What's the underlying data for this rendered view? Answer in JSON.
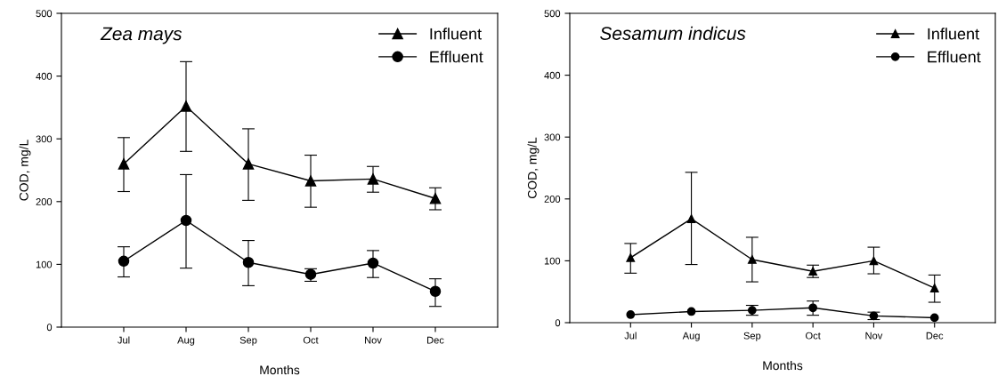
{
  "chart_data": [
    {
      "type": "line",
      "title": "Zea mays",
      "xlabel": "Months",
      "ylabel": "COD, mg/L",
      "categories": [
        "Jul",
        "Aug",
        "Sep",
        "Oct",
        "Nov",
        "Dec"
      ],
      "ylim": [
        0,
        500
      ],
      "yticks": [
        0,
        100,
        200,
        300,
        400,
        500
      ],
      "legend": "top right",
      "grid": false,
      "line_style": "solid",
      "series": [
        {
          "name": "Influent",
          "color": "#000000",
          "marker": "triangle",
          "values": [
            260,
            352,
            260,
            233,
            236,
            205
          ],
          "errors": [
            [
              216,
              302
            ],
            [
              280,
              423
            ],
            [
              202,
              316
            ],
            [
              191,
              274
            ],
            [
              215,
              256
            ],
            [
              187,
              222
            ]
          ]
        },
        {
          "name": "Effluent",
          "color": "#000000",
          "marker": "circle",
          "values": [
            105,
            170,
            103,
            84,
            102,
            57
          ],
          "errors": [
            [
              80,
              128
            ],
            [
              94,
              243
            ],
            [
              66,
              138
            ],
            [
              73,
              93
            ],
            [
              79,
              122
            ],
            [
              33,
              77
            ]
          ]
        }
      ]
    },
    {
      "type": "line",
      "title": "Sesamum indicus",
      "xlabel": "Months",
      "ylabel": "COD, mg/L",
      "categories": [
        "Jul",
        "Aug",
        "Sep",
        "Oct",
        "Nov",
        "Dec"
      ],
      "ylim": [
        0,
        500
      ],
      "yticks": [
        0,
        100,
        200,
        300,
        400,
        500
      ],
      "legend": "top right",
      "grid": false,
      "line_style": "solid",
      "series": [
        {
          "name": "Influent",
          "color": "#000000",
          "marker": "triangle",
          "values": [
            105,
            168,
            102,
            83,
            100,
            56
          ],
          "errors": [
            [
              80,
              128
            ],
            [
              94,
              243
            ],
            [
              66,
              138
            ],
            [
              73,
              93
            ],
            [
              79,
              122
            ],
            [
              33,
              77
            ]
          ]
        },
        {
          "name": "Effluent",
          "color": "#000000",
          "marker": "circle",
          "values": [
            13,
            18,
            20,
            24,
            11,
            8
          ],
          "errors": [
            null,
            null,
            [
              12,
              28
            ],
            [
              12,
              35
            ],
            [
              5,
              17
            ],
            null
          ]
        }
      ]
    }
  ]
}
